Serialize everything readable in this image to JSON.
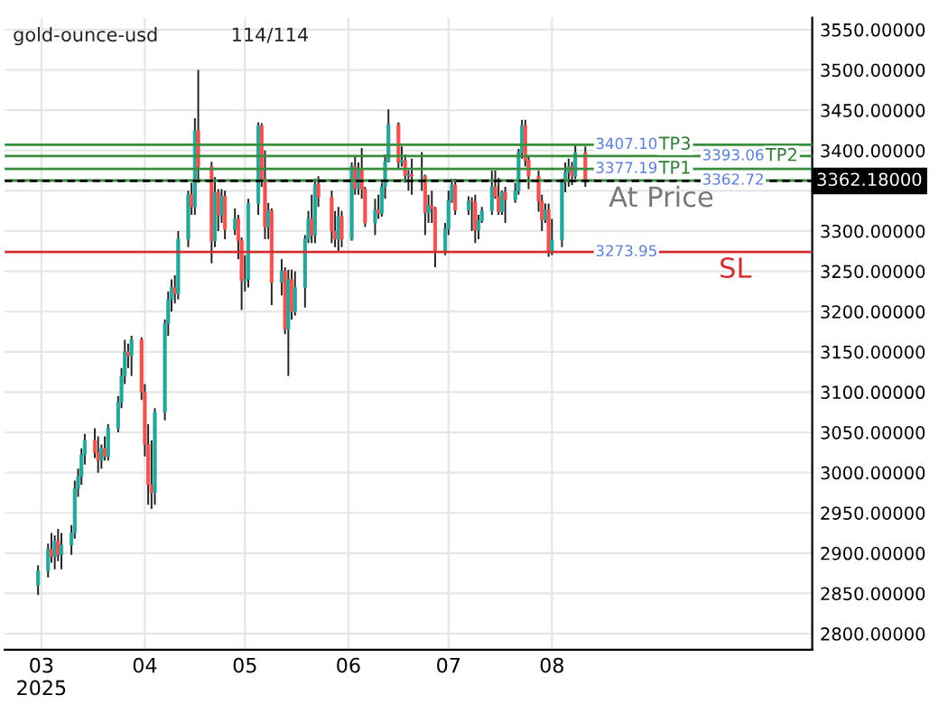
{
  "chart_data": {
    "type": "candlestick",
    "title": "gold-ounce-usd",
    "annotations": [
      "114/114",
      {
        "text": "TP3",
        "x": "2025-09-02",
        "y": 3407.1
      },
      {
        "text": "TP2",
        "x": "2025-10-04",
        "y": 3393.06
      },
      {
        "text": "TP1",
        "x": "2025-09-02",
        "y": 3377.19
      },
      {
        "text": "At Price",
        "x": "2025-08-18",
        "y": 3362.18
      },
      {
        "text": "SL",
        "x": "2025-09-20",
        "y": 3273.95
      }
    ],
    "x": [
      "2025-02-28",
      "2025-03-03",
      "2025-03-04",
      "2025-03-05",
      "2025-03-06",
      "2025-03-07",
      "2025-03-10",
      "2025-03-11",
      "2025-03-12",
      "2025-03-13",
      "2025-03-14",
      "2025-03-17",
      "2025-03-18",
      "2025-03-19",
      "2025-03-20",
      "2025-03-21",
      "2025-03-24",
      "2025-03-25",
      "2025-03-26",
      "2025-03-27",
      "2025-03-28",
      "2025-03-31",
      "2025-04-01",
      "2025-04-02",
      "2025-04-03",
      "2025-04-04",
      "2025-04-07",
      "2025-04-08",
      "2025-04-09",
      "2025-04-10",
      "2025-04-11",
      "2025-04-14",
      "2025-04-15",
      "2025-04-16",
      "2025-04-17",
      "2025-04-21",
      "2025-04-22",
      "2025-04-23",
      "2025-04-24",
      "2025-04-25",
      "2025-04-28",
      "2025-04-29",
      "2025-04-30",
      "2025-05-01",
      "2025-05-02",
      "2025-05-05",
      "2025-05-06",
      "2025-05-07",
      "2025-05-08",
      "2025-05-09",
      "2025-05-12",
      "2025-05-13",
      "2025-05-14",
      "2025-05-15",
      "2025-05-16",
      "2025-05-19",
      "2025-05-20",
      "2025-05-21",
      "2025-05-22",
      "2025-05-23",
      "2025-05-27",
      "2025-05-28",
      "2025-05-29",
      "2025-05-30",
      "2025-06-02",
      "2025-06-03",
      "2025-06-04",
      "2025-06-05",
      "2025-06-06",
      "2025-06-09",
      "2025-06-10",
      "2025-06-11",
      "2025-06-12",
      "2025-06-13",
      "2025-06-16",
      "2025-06-17",
      "2025-06-18",
      "2025-06-19",
      "2025-06-20",
      "2025-06-23",
      "2025-06-24",
      "2025-06-25",
      "2025-06-26",
      "2025-06-27",
      "2025-06-30",
      "2025-07-01",
      "2025-07-02",
      "2025-07-03",
      "2025-07-07",
      "2025-07-08",
      "2025-07-09",
      "2025-07-10",
      "2025-07-11",
      "2025-07-14",
      "2025-07-15",
      "2025-07-16",
      "2025-07-17",
      "2025-07-18",
      "2025-07-21",
      "2025-07-22",
      "2025-07-23",
      "2025-07-24",
      "2025-07-25",
      "2025-07-28",
      "2025-07-29",
      "2025-07-30",
      "2025-07-31",
      "2025-08-01",
      "2025-08-04",
      "2025-08-05",
      "2025-08-06",
      "2025-08-07",
      "2025-08-08",
      "2025-08-11"
    ],
    "ohlc": [
      [
        2860,
        2885,
        2848,
        2878
      ],
      [
        2878,
        2912,
        2870,
        2905
      ],
      [
        2905,
        2925,
        2888,
        2896
      ],
      [
        2896,
        2922,
        2880,
        2915
      ],
      [
        2915,
        2930,
        2890,
        2898
      ],
      [
        2898,
        2925,
        2880,
        2910
      ],
      [
        2910,
        2935,
        2898,
        2925
      ],
      [
        2925,
        2990,
        2918,
        2980
      ],
      [
        2980,
        3005,
        2970,
        2995
      ],
      [
        2995,
        3030,
        2985,
        3022
      ],
      [
        3022,
        3048,
        3010,
        3040
      ],
      [
        3040,
        3055,
        3018,
        3025
      ],
      [
        3025,
        3045,
        3000,
        3015
      ],
      [
        3015,
        3035,
        3005,
        3030
      ],
      [
        3030,
        3045,
        3015,
        3020
      ],
      [
        3020,
        3060,
        3015,
        3055
      ],
      [
        3055,
        3095,
        3050,
        3088
      ],
      [
        3088,
        3130,
        3080,
        3120
      ],
      [
        3120,
        3165,
        3110,
        3150
      ],
      [
        3150,
        3160,
        3130,
        3145
      ],
      [
        3145,
        3170,
        3120,
        3165
      ],
      [
        3165,
        3168,
        3090,
        3100
      ],
      [
        3100,
        3110,
        3020,
        3035
      ],
      [
        3035,
        3060,
        2960,
        2985
      ],
      [
        2985,
        3040,
        2955,
        2975
      ],
      [
        2975,
        3080,
        2960,
        3075
      ],
      [
        3075,
        3190,
        3065,
        3185
      ],
      [
        3185,
        3225,
        3170,
        3215
      ],
      [
        3215,
        3240,
        3200,
        3230
      ],
      [
        3230,
        3245,
        3210,
        3222
      ],
      [
        3222,
        3300,
        3215,
        3290
      ],
      [
        3290,
        3350,
        3280,
        3345
      ],
      [
        3345,
        3360,
        3320,
        3330
      ],
      [
        3330,
        3440,
        3320,
        3425
      ],
      [
        3425,
        3500,
        3360,
        3380
      ],
      [
        3380,
        3386,
        3260,
        3288
      ],
      [
        3288,
        3367,
        3280,
        3348
      ],
      [
        3348,
        3352,
        3300,
        3320
      ],
      [
        3320,
        3352,
        3310,
        3343
      ],
      [
        3343,
        3350,
        3290,
        3302
      ],
      [
        3302,
        3328,
        3295,
        3315
      ],
      [
        3315,
        3320,
        3265,
        3288
      ],
      [
        3288,
        3292,
        3202,
        3238
      ],
      [
        3238,
        3270,
        3225,
        3240
      ],
      [
        3240,
        3340,
        3230,
        3334
      ],
      [
        3334,
        3435,
        3320,
        3431
      ],
      [
        3431,
        3434,
        3355,
        3365
      ],
      [
        3365,
        3400,
        3290,
        3305
      ],
      [
        3305,
        3335,
        3290,
        3325
      ],
      [
        3325,
        3328,
        3208,
        3236
      ],
      [
        3236,
        3265,
        3220,
        3250
      ],
      [
        3250,
        3255,
        3172,
        3178
      ],
      [
        3178,
        3252,
        3120,
        3240
      ],
      [
        3240,
        3252,
        3190,
        3200
      ],
      [
        3200,
        3250,
        3195,
        3230
      ],
      [
        3230,
        3295,
        3205,
        3290
      ],
      [
        3290,
        3325,
        3285,
        3315
      ],
      [
        3315,
        3345,
        3285,
        3295
      ],
      [
        3295,
        3365,
        3285,
        3358
      ],
      [
        3358,
        3368,
        3330,
        3342
      ],
      [
        3342,
        3350,
        3285,
        3300
      ],
      [
        3300,
        3325,
        3280,
        3290
      ],
      [
        3290,
        3330,
        3275,
        3318
      ],
      [
        3318,
        3325,
        3280,
        3290
      ],
      [
        3290,
        3385,
        3288,
        3380
      ],
      [
        3380,
        3392,
        3345,
        3353
      ],
      [
        3353,
        3385,
        3345,
        3375
      ],
      [
        3375,
        3403,
        3340,
        3352
      ],
      [
        3352,
        3355,
        3305,
        3310
      ],
      [
        3310,
        3340,
        3295,
        3326
      ],
      [
        3326,
        3345,
        3315,
        3322
      ],
      [
        3322,
        3360,
        3318,
        3355
      ],
      [
        3355,
        3395,
        3340,
        3386
      ],
      [
        3386,
        3451,
        3385,
        3432
      ],
      [
        3432,
        3435,
        3378,
        3385
      ],
      [
        3385,
        3405,
        3380,
        3388
      ],
      [
        3388,
        3395,
        3360,
        3369
      ],
      [
        3369,
        3375,
        3350,
        3370
      ],
      [
        3370,
        3390,
        3345,
        3368
      ],
      [
        3368,
        3398,
        3350,
        3368
      ],
      [
        3368,
        3370,
        3295,
        3323
      ],
      [
        3323,
        3345,
        3310,
        3332
      ],
      [
        3332,
        3350,
        3310,
        3328
      ],
      [
        3328,
        3330,
        3255,
        3274
      ],
      [
        3274,
        3310,
        3270,
        3303
      ],
      [
        3303,
        3350,
        3295,
        3338
      ],
      [
        3338,
        3365,
        3335,
        3357
      ],
      [
        3357,
        3365,
        3320,
        3326
      ],
      [
        3326,
        3343,
        3320,
        3337
      ],
      [
        3337,
        3342,
        3300,
        3336
      ],
      [
        3336,
        3345,
        3285,
        3301
      ],
      [
        3301,
        3320,
        3290,
        3313
      ],
      [
        3313,
        3330,
        3310,
        3325
      ],
      [
        3325,
        3375,
        3320,
        3355
      ],
      [
        3355,
        3375,
        3340,
        3343
      ],
      [
        3343,
        3366,
        3320,
        3324
      ],
      [
        3324,
        3350,
        3320,
        3348
      ],
      [
        3348,
        3355,
        3310,
        3339
      ],
      [
        3339,
        3360,
        3335,
        3350
      ],
      [
        3350,
        3402,
        3345,
        3397
      ],
      [
        3397,
        3438,
        3390,
        3431
      ],
      [
        3431,
        3438,
        3380,
        3388
      ],
      [
        3388,
        3394,
        3352,
        3368
      ],
      [
        3368,
        3375,
        3324,
        3337
      ],
      [
        3337,
        3345,
        3300,
        3314
      ],
      [
        3314,
        3334,
        3310,
        3326
      ],
      [
        3326,
        3334,
        3268,
        3275
      ],
      [
        3275,
        3315,
        3270,
        3289
      ],
      [
        3289,
        3365,
        3280,
        3363
      ],
      [
        3363,
        3385,
        3348,
        3373
      ],
      [
        3373,
        3390,
        3355,
        3380
      ],
      [
        3380,
        3386,
        3357,
        3368
      ],
      [
        3368,
        3408,
        3365,
        3397
      ],
      [
        3397,
        3405,
        3355,
        3362
      ]
    ],
    "xlim": [
      "2025-02-18",
      "2025-10-18"
    ],
    "xticks": [
      {
        "value": "2025-03-01",
        "label": "03\n2025"
      },
      {
        "value": "2025-04-01",
        "label": "04"
      },
      {
        "value": "2025-05-01",
        "label": "05"
      },
      {
        "value": "2025-06-01",
        "label": "06"
      },
      {
        "value": "2025-07-01",
        "label": "07"
      },
      {
        "value": "2025-08-01",
        "label": "08"
      }
    ],
    "ylim": [
      2780,
      3565
    ],
    "yticks": [
      {
        "value": 2800,
        "label": "2800.00000"
      },
      {
        "value": 2850,
        "label": "2850.00000"
      },
      {
        "value": 2900,
        "label": "2900.00000"
      },
      {
        "value": 2950,
        "label": "2950.00000"
      },
      {
        "value": 3000,
        "label": "3000.00000"
      },
      {
        "value": 3050,
        "label": "3050.00000"
      },
      {
        "value": 3100,
        "label": "3100.00000"
      },
      {
        "value": 3150,
        "label": "3150.00000"
      },
      {
        "value": 3200,
        "label": "3200.00000"
      },
      {
        "value": 3250,
        "label": "3250.00000"
      },
      {
        "value": 3300,
        "label": "3300.00000"
      },
      {
        "value": 3350,
        "label": null
      },
      {
        "value": 3400,
        "label": "3400.00000"
      },
      {
        "value": 3450,
        "label": "3450.00000"
      },
      {
        "value": 3500,
        "label": "3500.00000"
      },
      {
        "value": 3550,
        "label": "3550.00000"
      }
    ],
    "grid": true,
    "ref_lines": [
      {
        "axis": "y",
        "value": 3407.1,
        "label": "3407.10",
        "color": "#388e3c",
        "line_style": "solid"
      },
      {
        "axis": "y",
        "value": 3393.06,
        "label": "3393.06",
        "color": "#388e3c",
        "line_style": "solid"
      },
      {
        "axis": "y",
        "value": 3377.19,
        "label": "3377.19",
        "color": "#388e3c",
        "line_style": "solid"
      },
      {
        "axis": "y",
        "value": 3362.72,
        "label": "3362.72",
        "color": "#388e3c",
        "line_style": "solid"
      },
      {
        "axis": "y",
        "value": 3362.18,
        "label": "3362.18000",
        "color": "#000000",
        "line_style": "dashed"
      },
      {
        "axis": "y",
        "value": 3273.95,
        "label": "3273.95",
        "color": "#d32f2f",
        "line_style": "solid"
      }
    ]
  }
}
